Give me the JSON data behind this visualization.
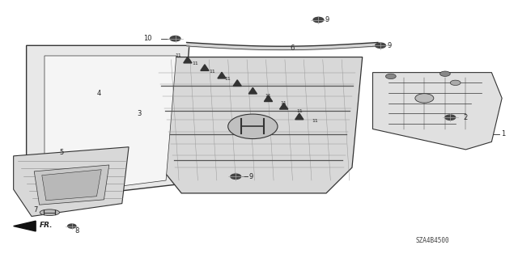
{
  "background_color": "#ffffff",
  "diagram_code": "SZA4B4500",
  "fr_label": "FR.",
  "line_color": "#333333",
  "text_color": "#222222"
}
